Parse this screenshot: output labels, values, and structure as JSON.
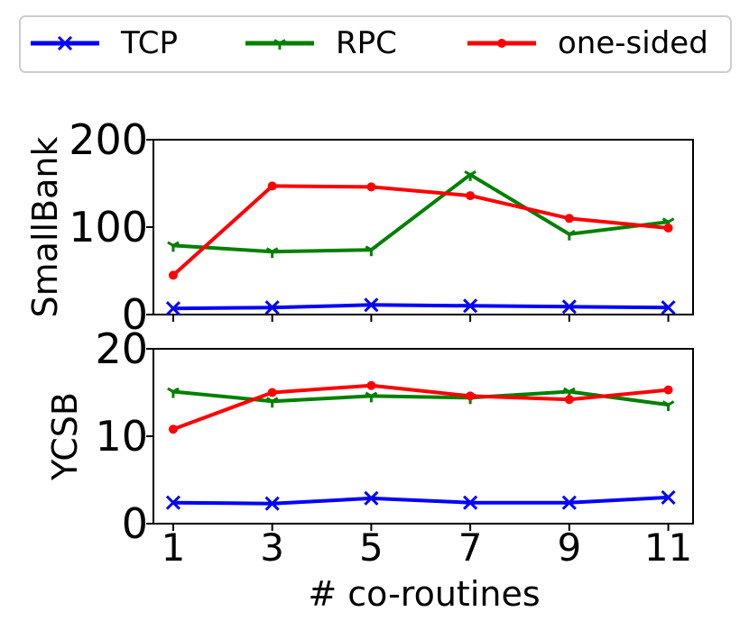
{
  "chart_data": {
    "type": "line",
    "xlabel": "# co-routines",
    "x": [
      1,
      3,
      5,
      7,
      9,
      11
    ],
    "legend": {
      "placement": "top",
      "entries": [
        "TCP",
        "RPC",
        "one-sided"
      ]
    },
    "colors": {
      "TCP": "#0000ff",
      "RPC": "#008000",
      "one-sided": "#ff0000"
    },
    "markers": {
      "TCP": "x",
      "RPC": "tri-down",
      "one-sided": "dot"
    },
    "panels": [
      {
        "ylabel": "SmallBank",
        "ylim": [
          0,
          200
        ],
        "yticks": [
          0,
          100,
          200
        ],
        "series": [
          {
            "name": "TCP",
            "values": [
              7,
              8,
              11,
              10,
              9,
              8
            ]
          },
          {
            "name": "RPC",
            "values": [
              79,
              72,
              74,
              160,
              92,
              106
            ]
          },
          {
            "name": "one-sided",
            "values": [
              45,
              147,
              146,
              136,
              110,
              99
            ]
          }
        ]
      },
      {
        "ylabel": "YCSB",
        "ylim": [
          0,
          20
        ],
        "yticks": [
          0,
          10,
          20
        ],
        "series": [
          {
            "name": "TCP",
            "values": [
              2.4,
              2.3,
              2.9,
              2.4,
              2.4,
              3.0
            ]
          },
          {
            "name": "RPC",
            "values": [
              15.1,
              14.0,
              14.6,
              14.4,
              15.1,
              13.6
            ]
          },
          {
            "name": "one-sided",
            "values": [
              10.8,
              15.0,
              15.8,
              14.6,
              14.2,
              15.3
            ]
          }
        ]
      }
    ],
    "xticks": [
      "1",
      "3",
      "5",
      "7",
      "9",
      "11"
    ],
    "grid": false
  }
}
